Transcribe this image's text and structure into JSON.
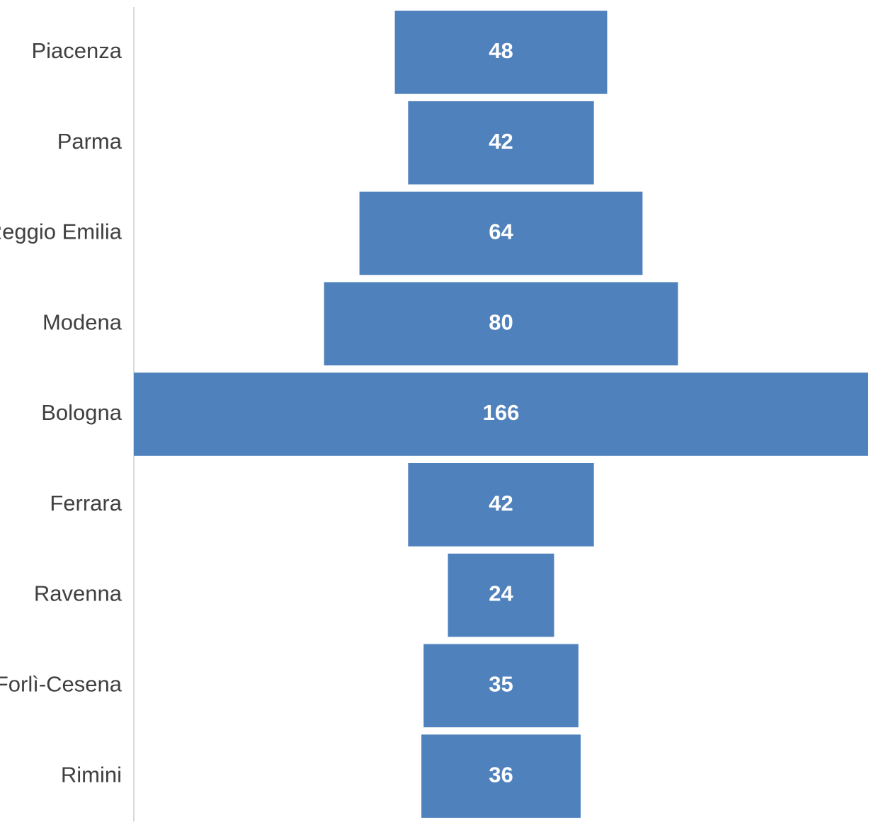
{
  "chart_data": {
    "type": "bar",
    "orientation": "horizontal",
    "layout": "centered-funnel",
    "categories": [
      "Piacenza",
      "Parma",
      "Reggio Emilia",
      "Modena",
      "Bologna",
      "Ferrara",
      "Ravenna",
      "Forlì-Cesena",
      "Rimini"
    ],
    "values": [
      48,
      42,
      64,
      80,
      166,
      42,
      24,
      35,
      36
    ],
    "data_labels": true,
    "bar_color": "#4f81bd",
    "label_color": "#ffffff",
    "axis_color": "#d9d9d9",
    "grid": false,
    "legend": "none"
  }
}
